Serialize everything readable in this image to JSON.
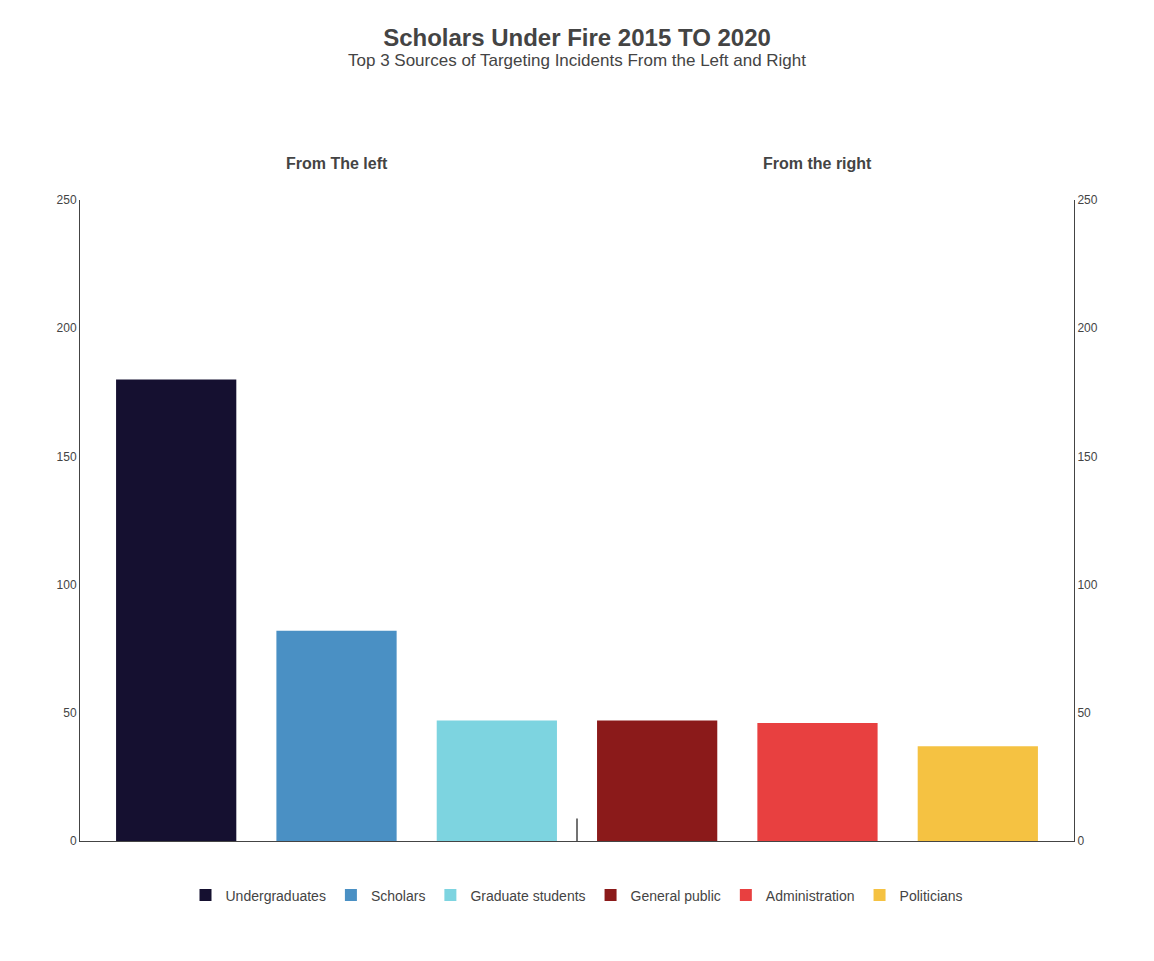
{
  "chart_data": {
    "type": "bar",
    "title": "Scholars Under Fire 2015 TO 2020",
    "subtitle": "Top 3 Sources of Targeting Incidents From the Left and Right",
    "categories": [
      "Undergraduates",
      "Scholars",
      "Graduate students",
      "General public",
      "Administration",
      "Politicians"
    ],
    "values": [
      180,
      82,
      47,
      47,
      46,
      37
    ],
    "colors": [
      "#151030",
      "#4a90c4",
      "#7dd4e0",
      "#8b1a1a",
      "#e84040",
      "#f5c242"
    ],
    "annotations": [
      {
        "text": "From The left"
      },
      {
        "text": "From the right"
      }
    ],
    "ylim": [
      0,
      250
    ],
    "yticks": [
      0,
      50,
      100,
      150,
      200,
      250
    ],
    "y2lim": [
      0,
      250
    ],
    "y2ticks": [
      0,
      50,
      100,
      150,
      200,
      250
    ],
    "grid": false,
    "legend": "bottom",
    "tick_labels": "y"
  }
}
